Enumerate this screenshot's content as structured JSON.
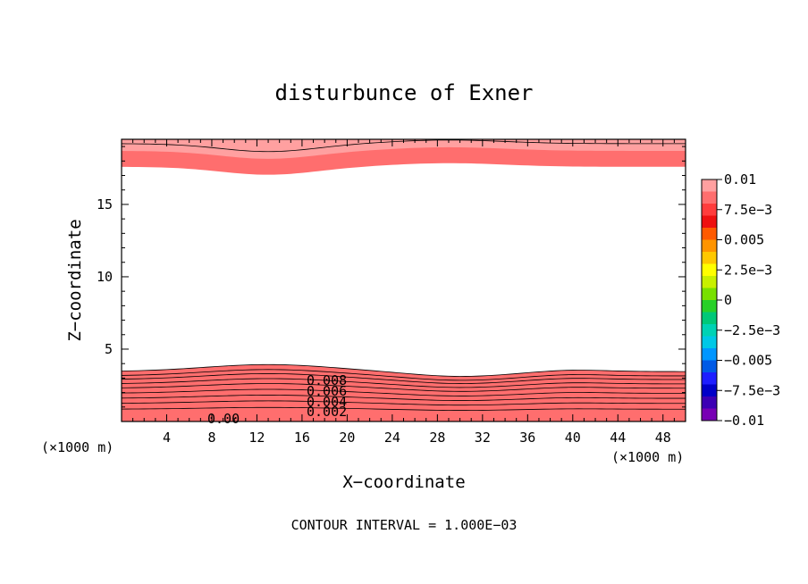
{
  "chart_data": {
    "type": "contour",
    "title": "disturbunce of Exner",
    "xlabel": "X−coordinate",
    "ylabel": "Z−coordinate",
    "x_unit": "(×1000 m)",
    "footer": "CONTOUR INTERVAL = 1.000E−03",
    "xlim": [
      0,
      50
    ],
    "ylim": [
      0,
      19.5
    ],
    "x_ticks": [
      "4",
      "8",
      "12",
      "16",
      "20",
      "24",
      "28",
      "32",
      "36",
      "40",
      "44",
      "48"
    ],
    "y_ticks": [
      "5",
      "10",
      "15"
    ],
    "colorbar": {
      "labels": [
        "0.01",
        "7.5e−3",
        "0.005",
        "2.5e−3",
        "0",
        "−2.5e−3",
        "−0.005",
        "−7.5e−3",
        "−0.01"
      ],
      "levels_top_to_bottom": [
        0.01,
        0.009,
        0.008,
        0.007,
        0.006,
        0.005,
        0.004,
        0.003,
        0.002,
        0.001,
        0.0,
        -0.001,
        -0.002,
        -0.003,
        -0.004,
        -0.005,
        -0.006,
        -0.007,
        -0.008,
        -0.009
      ],
      "colors_top_to_bottom": [
        "#ffa0a0",
        "#ff6e6e",
        "#ff3c3c",
        "#ee1010",
        "#ff5a00",
        "#ff9400",
        "#ffc800",
        "#ffff00",
        "#c8f000",
        "#78e000",
        "#28d028",
        "#00c878",
        "#00d2b4",
        "#00c8e6",
        "#0096ff",
        "#005ae6",
        "#1e1eff",
        "#0000c8",
        "#3c00b4",
        "#7800b4"
      ]
    },
    "contour_labels": [
      "0.008",
      "0.006",
      "0.004",
      "0.002",
      "0.00"
    ],
    "contour_interval": 0.001
  }
}
